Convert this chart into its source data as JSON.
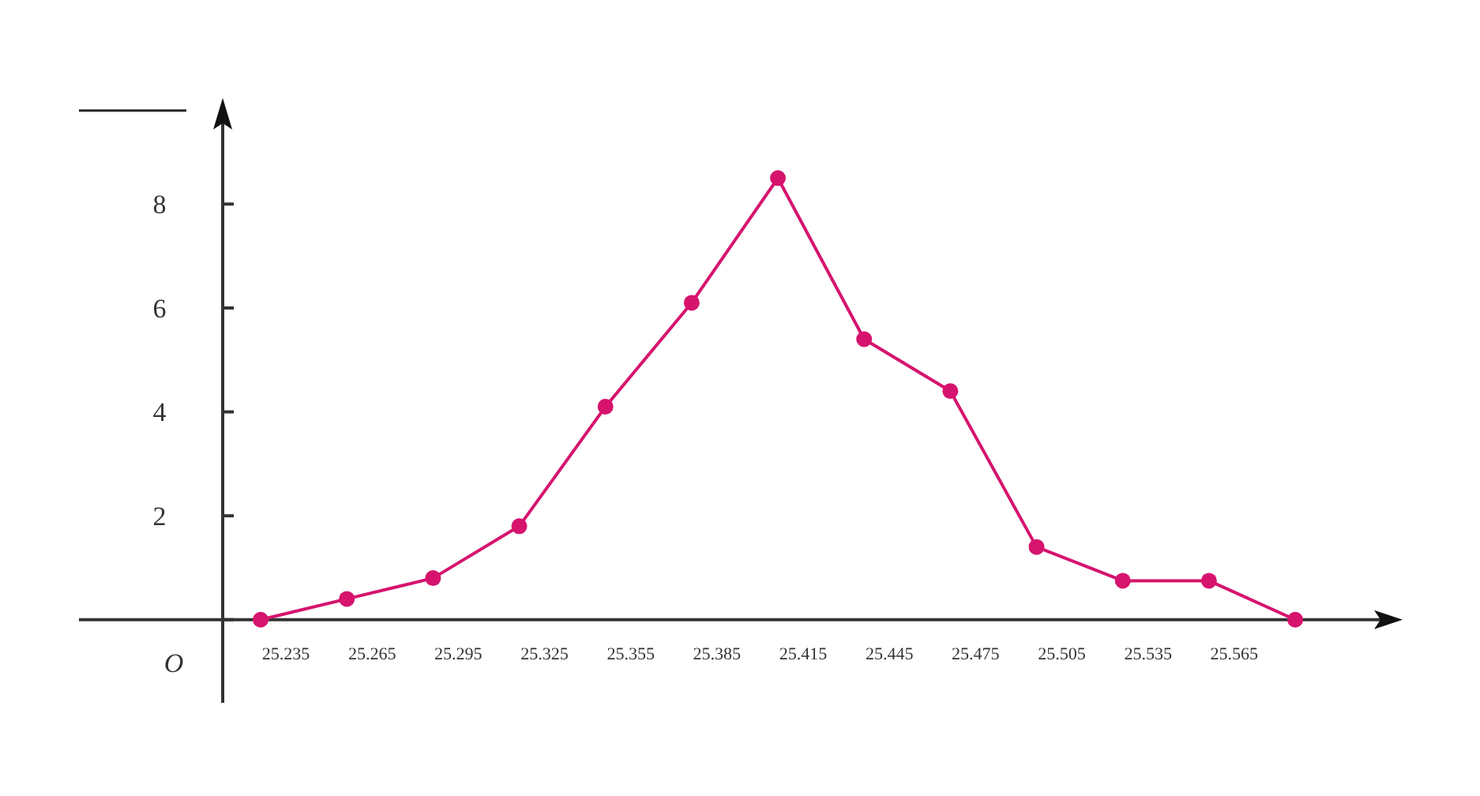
{
  "chart_data": {
    "type": "line",
    "categories": [
      "25.235",
      "25.265",
      "25.295",
      "25.325",
      "25.355",
      "25.385",
      "25.415",
      "25.445",
      "25.475",
      "25.505",
      "25.535",
      "25.565",
      null
    ],
    "series": [
      {
        "color": "#d6146e",
        "values": [
          0,
          0.4,
          0.8,
          1.8,
          4.1,
          6.1,
          8.5,
          5.4,
          4.4,
          1.4,
          0.75,
          0.75,
          0
        ]
      }
    ],
    "ylim": [
      -1.6,
      9.8
    ],
    "yticks": [
      {
        "value": 0,
        "label": null
      },
      2,
      4,
      6,
      8
    ],
    "marker": "circle",
    "line_style": "solid",
    "grid": false,
    "annotations": [
      "O"
    ]
  }
}
